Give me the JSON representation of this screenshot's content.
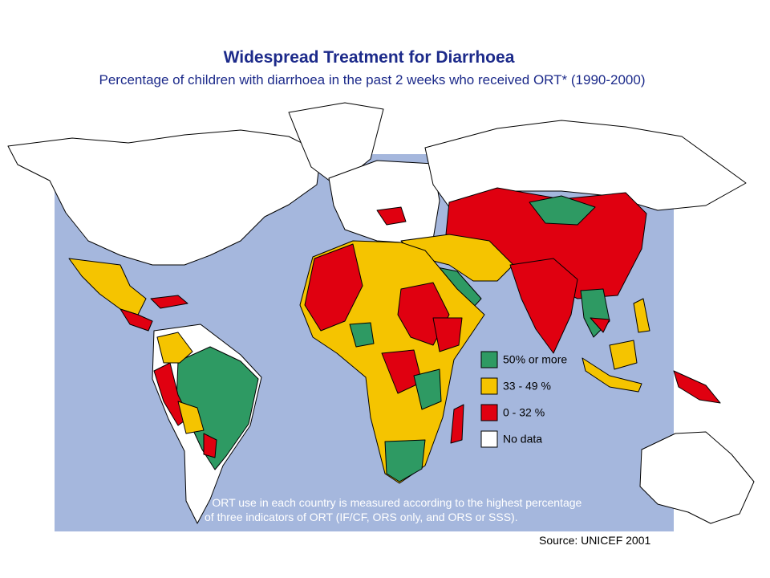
{
  "title": "Widespread Treatment for Diarrhoea",
  "subtitle": "Percentage of children with diarrhoea in the past 2 weeks who received ORT*  (1990-2000)",
  "legend": [
    {
      "label": "50% or more",
      "color": "#2e9a63"
    },
    {
      "label": "33 - 49 %",
      "color": "#f5c400"
    },
    {
      "label": "0 - 32 %",
      "color": "#e00010"
    },
    {
      "label": "No data",
      "color": "#ffffff"
    }
  ],
  "footnote": [
    "* ORT use in each country is measured according to the highest percentage",
    "of three indicators of ORT (IF/CF, ORS only, and ORS or SSS)."
  ],
  "source": "Source: UNICEF 2001"
}
